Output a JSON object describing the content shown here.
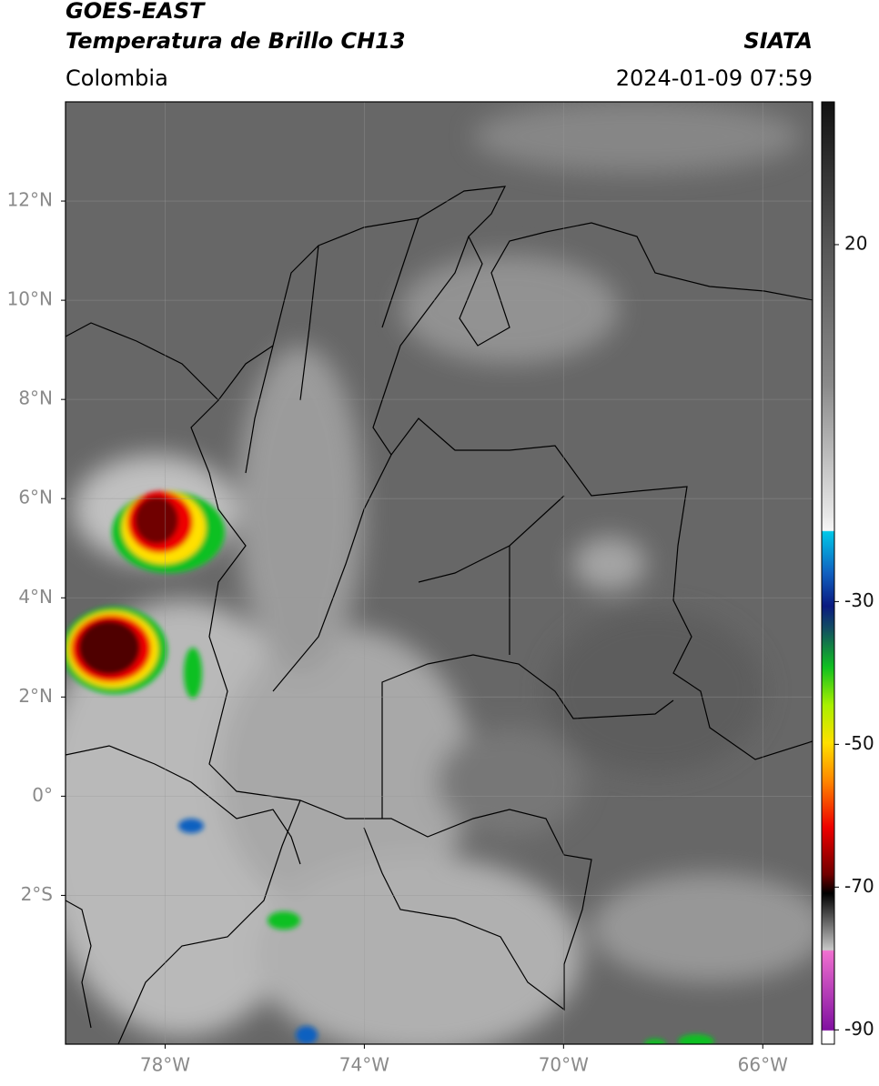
{
  "header": {
    "title": "GOES-EAST",
    "subtitle": "Temperatura de Brillo CH13",
    "source": "SIATA",
    "region": "Colombia",
    "datetime": "2024-01-09 07:59"
  },
  "map": {
    "xlim": [
      -80,
      -65
    ],
    "ylim": [
      -5,
      14
    ],
    "xticks": [
      {
        "value": -78,
        "label": "78°W"
      },
      {
        "value": -74,
        "label": "74°W"
      },
      {
        "value": -70,
        "label": "70°W"
      },
      {
        "value": -66,
        "label": "66°W"
      }
    ],
    "yticks": [
      {
        "value": 12,
        "label": "12°N"
      },
      {
        "value": 10,
        "label": "10°N"
      },
      {
        "value": 8,
        "label": "8°N"
      },
      {
        "value": 6,
        "label": "6°N"
      },
      {
        "value": 4,
        "label": "4°N"
      },
      {
        "value": 2,
        "label": "2°N"
      },
      {
        "value": 0,
        "label": "0°"
      },
      {
        "value": -2,
        "label": "2°S"
      }
    ],
    "grid": true
  },
  "colorbar": {
    "lim": [
      -92,
      40
    ],
    "ticks": [
      20,
      -30,
      -50,
      -70,
      -90
    ]
  }
}
